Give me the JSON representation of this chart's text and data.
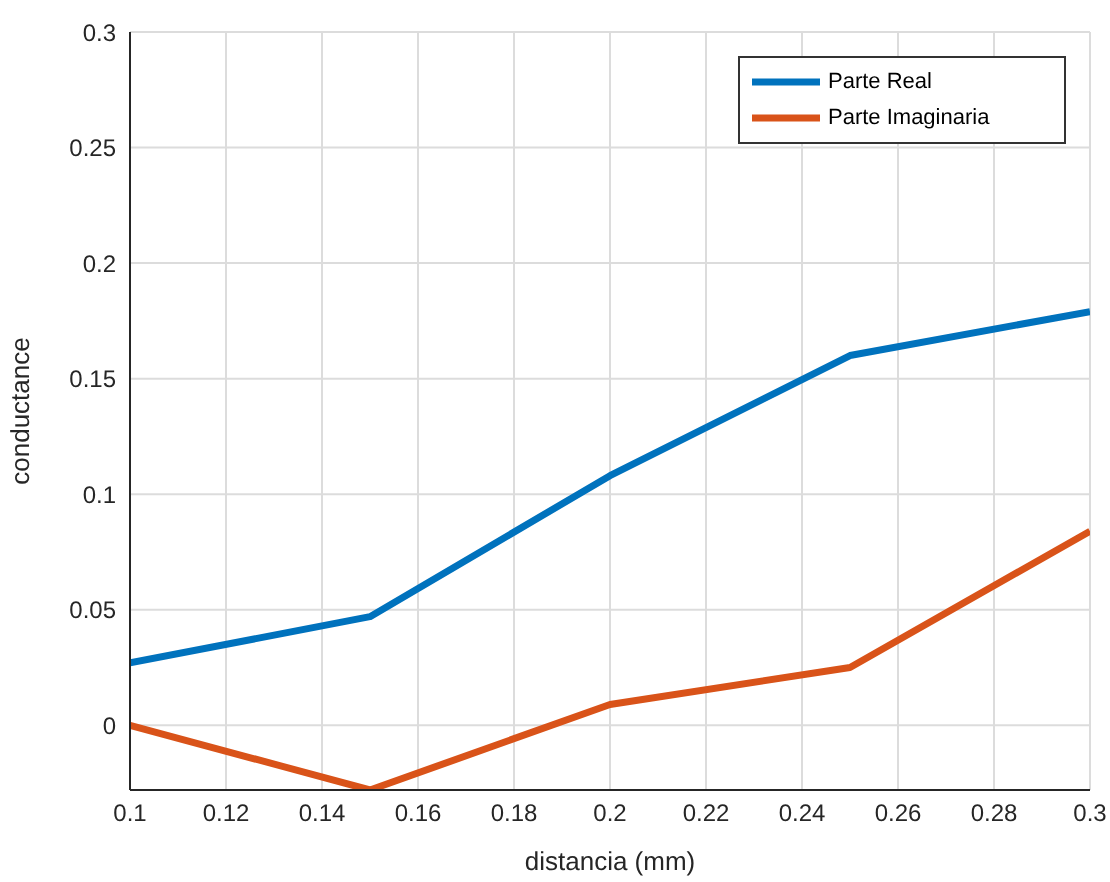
{
  "chart_data": {
    "type": "line",
    "xlabel": "distancia (mm)",
    "ylabel": "conductance",
    "x": [
      0.1,
      0.15,
      0.2,
      0.25,
      0.3
    ],
    "series": [
      {
        "name": "Parte Real",
        "color": "#0072bd",
        "values": [
          0.027,
          0.047,
          0.108,
          0.16,
          0.179
        ]
      },
      {
        "name": "Parte Imaginaria",
        "color": "#d95319",
        "values": [
          0,
          -0.028,
          0.009,
          0.025,
          0.084
        ]
      }
    ],
    "xlim": [
      0.1,
      0.3
    ],
    "xticks": [
      0.1,
      0.12,
      0.14,
      0.16,
      0.18,
      0.2,
      0.22,
      0.24,
      0.26,
      0.28,
      0.3
    ],
    "ylim": [
      -0.028,
      0.3
    ],
    "yticks": [
      0,
      0.05,
      0.1,
      0.15,
      0.2,
      0.25,
      0.3
    ],
    "grid": true,
    "legend": "top right",
    "marker": "none",
    "line_style": "solid"
  }
}
